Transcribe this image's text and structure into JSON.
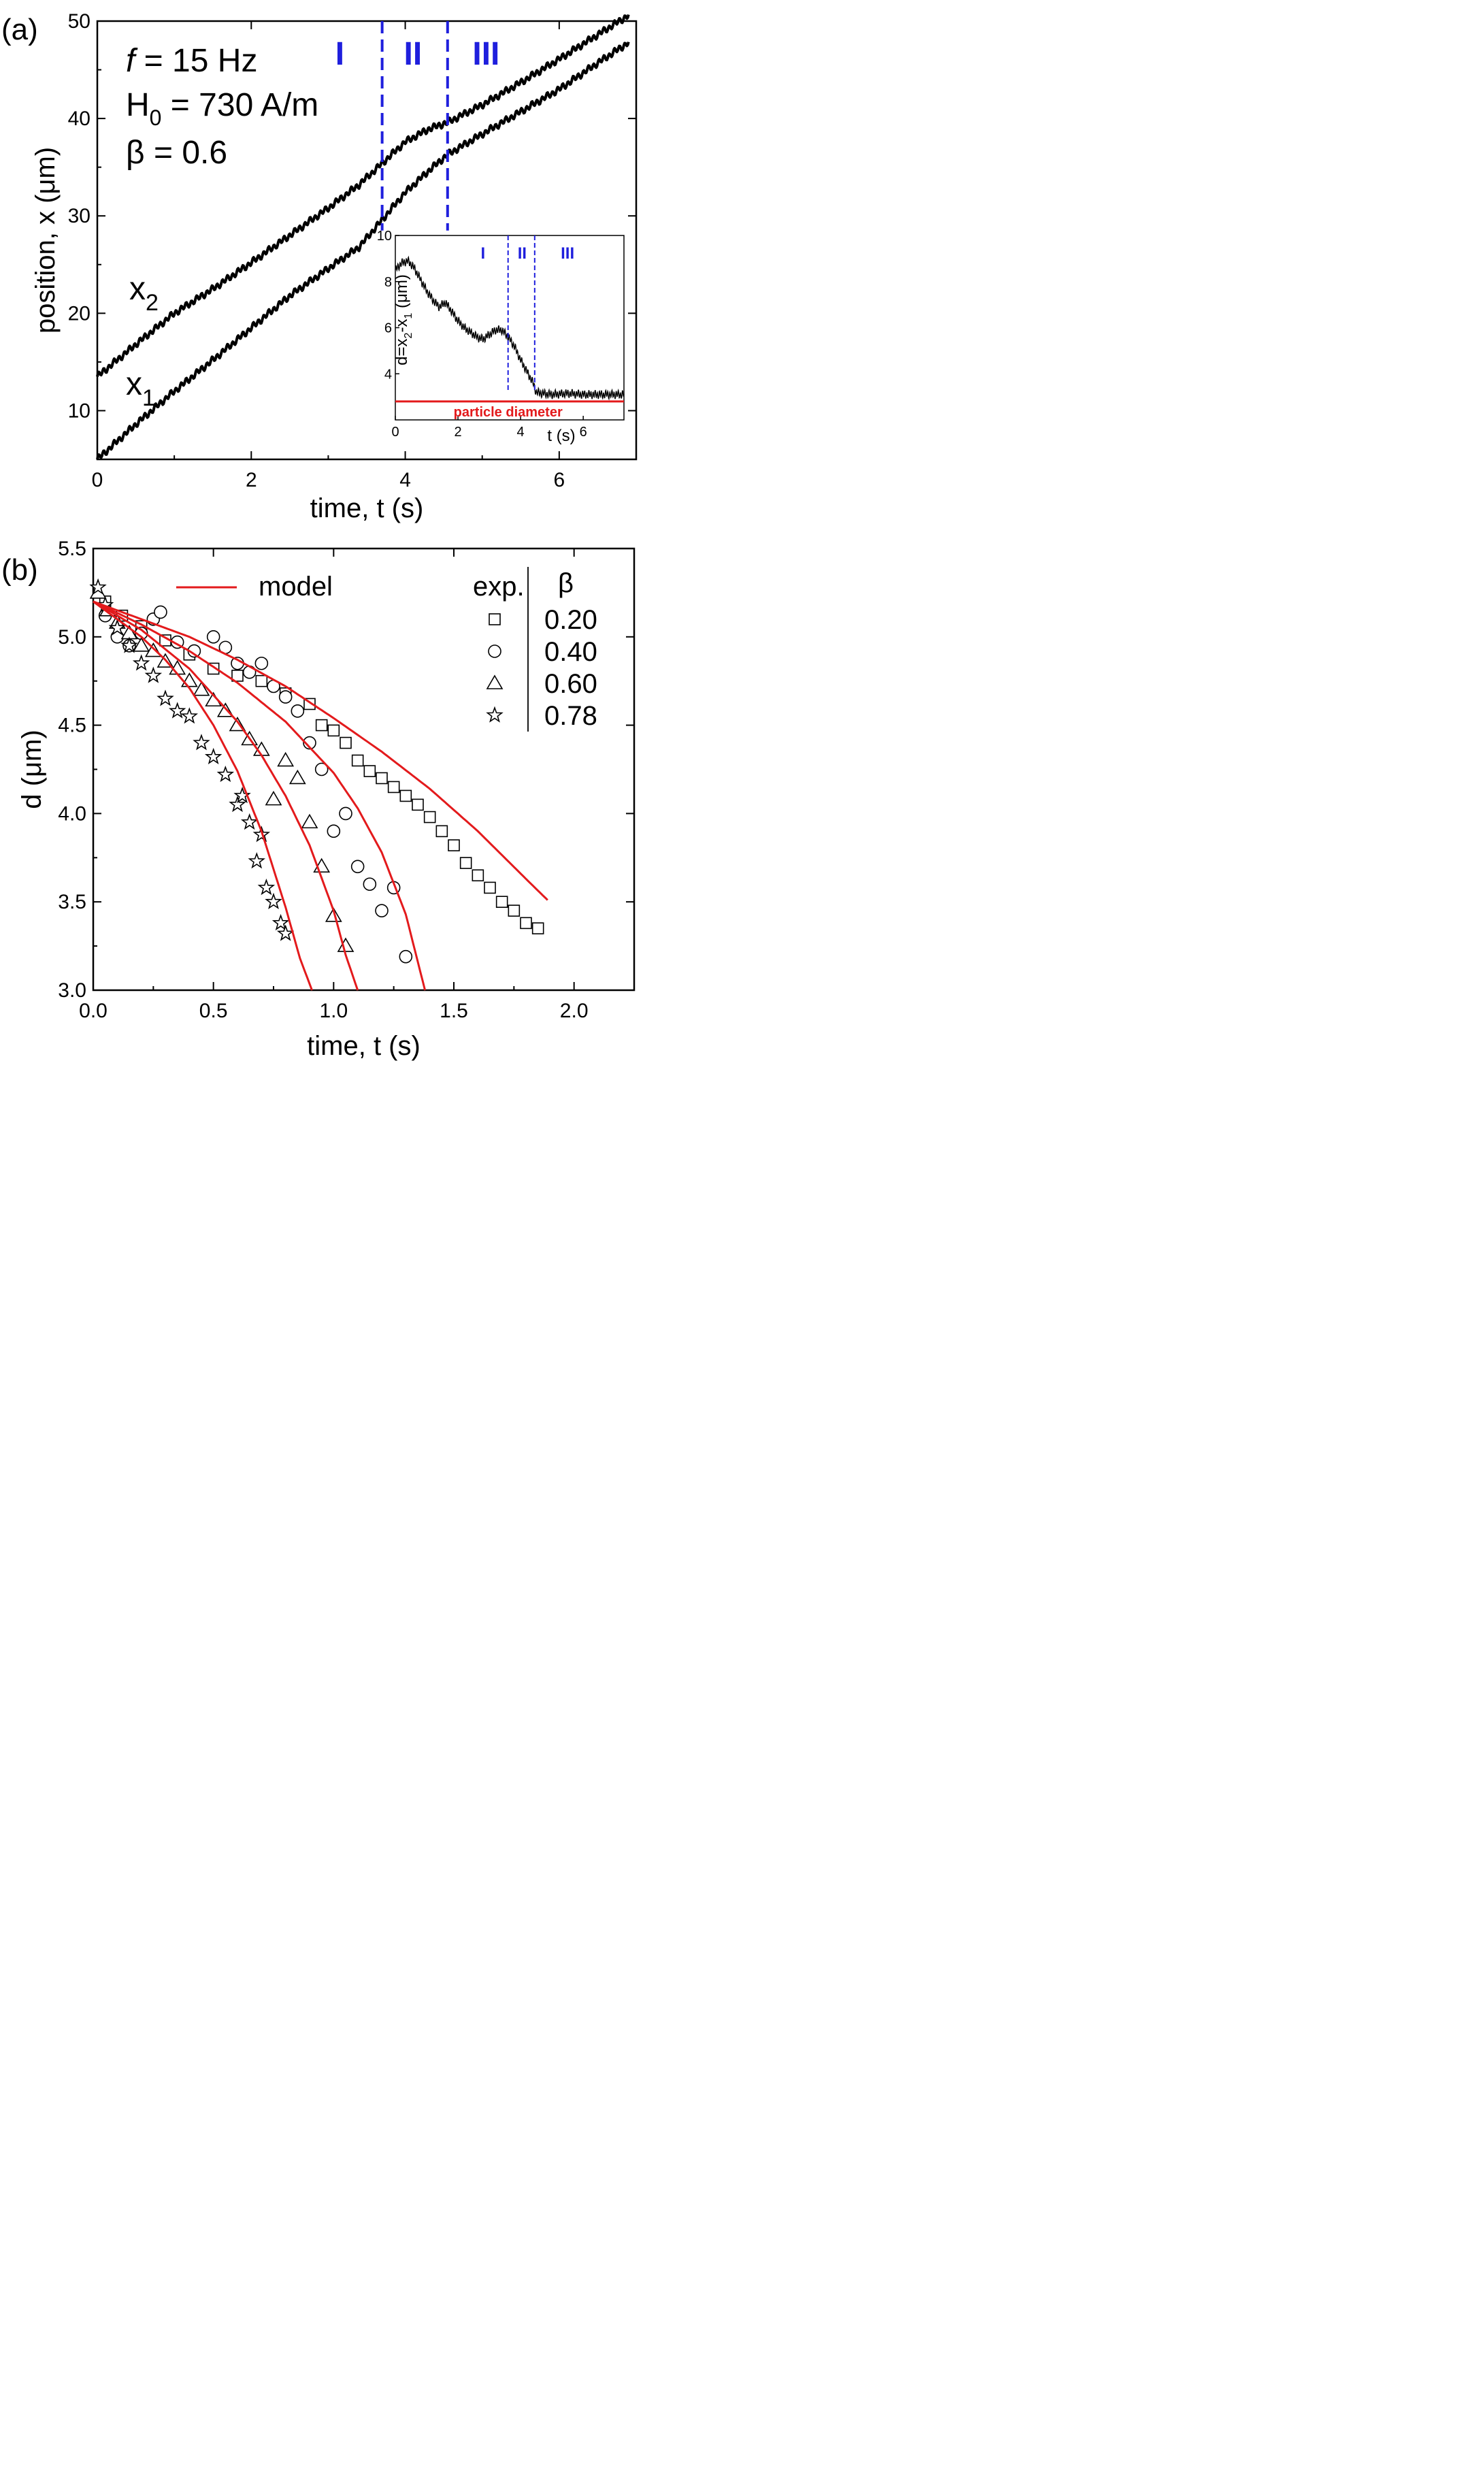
{
  "chart_data": [
    {
      "panel": "(a)",
      "type": "line",
      "xlabel": "time, t (s)",
      "ylabel": "position, x (μm)",
      "xlim": [
        0,
        7
      ],
      "ylim": [
        5,
        50
      ],
      "xticks": [
        0,
        2,
        4,
        6
      ],
      "yticks": [
        10,
        20,
        30,
        40,
        50
      ],
      "params": {
        "f_sym": "f",
        "f_rest": " = 15 Hz",
        "H_base": "H",
        "H_sub": "0",
        "H_rest": " = 730 A/m",
        "beta": "β = 0.6"
      },
      "regions": {
        "labels": [
          "I",
          "II",
          "III"
        ],
        "boundaries_t": [
          3.7,
          4.55
        ]
      },
      "curve_labels": {
        "x2_base": "x",
        "x2_sub": "2",
        "x1_base": "x",
        "x1_sub": "1"
      },
      "series": [
        {
          "name": "x2",
          "t": [
            0,
            0.5,
            1,
            1.5,
            2,
            2.5,
            3,
            3.4,
            3.7,
            4.0,
            4.3,
            4.55,
            5.0,
            5.5,
            6.0,
            6.5,
            6.9
          ],
          "x": [
            13.5,
            16.8,
            20.0,
            22.5,
            25.2,
            28.0,
            30.8,
            33.2,
            35.4,
            37.6,
            38.9,
            39.6,
            41.4,
            43.7,
            46.1,
            48.6,
            50.6
          ]
        },
        {
          "name": "x1",
          "t": [
            0,
            0.5,
            1,
            1.5,
            2,
            2.5,
            3,
            3.4,
            3.7,
            4.0,
            4.3,
            4.55,
            5.0,
            5.5,
            6.0,
            6.5,
            6.9
          ],
          "x": [
            5.0,
            8.6,
            12.0,
            15.2,
            18.5,
            21.8,
            24.6,
            26.8,
            29.6,
            32.4,
            34.6,
            36.3,
            38.4,
            40.7,
            43.0,
            45.7,
            47.8
          ]
        }
      ],
      "inset": {
        "type": "line",
        "xlabel": "t (s)",
        "ylabel_base": "d=x",
        "ylabel_sub2": "2",
        "ylabel_mid": "-x",
        "ylabel_sub1": "1",
        "ylabel_unit": " (μm)",
        "xlim": [
          0,
          7.3
        ],
        "ylim": [
          2,
          10
        ],
        "xticks": [
          0,
          2,
          4,
          6
        ],
        "yticks": [
          4,
          6,
          8,
          10
        ],
        "regions": {
          "labels": [
            "I",
            "II",
            "III"
          ],
          "boundaries_t": [
            3.6,
            4.45
          ]
        },
        "reference_line": {
          "y": 2.8,
          "label": "particle diameter"
        },
        "series": [
          {
            "name": "d",
            "t": [
              0,
              0.2,
              0.4,
              0.6,
              0.8,
              1.0,
              1.2,
              1.4,
              1.6,
              1.8,
              2.0,
              2.2,
              2.4,
              2.6,
              2.8,
              3.0,
              3.2,
              3.4,
              3.6,
              3.8,
              4.0,
              4.2,
              4.4,
              4.5,
              4.7,
              5.0,
              5.5,
              6.0,
              6.5,
              7.0,
              7.3
            ],
            "d": [
              8.5,
              8.8,
              8.9,
              8.6,
              8.1,
              7.6,
              7.2,
              6.9,
              7.1,
              6.7,
              6.3,
              6.0,
              5.8,
              5.6,
              5.5,
              5.7,
              5.9,
              5.9,
              5.6,
              5.2,
              4.6,
              4.1,
              3.6,
              3.2,
              3.15,
              3.1,
              3.15,
              3.1,
              3.1,
              3.1,
              3.1
            ]
          }
        ]
      }
    },
    {
      "panel": "(b)",
      "type": "scatter",
      "xlabel": "time, t (s)",
      "ylabel": "d (μm)",
      "xlim": [
        0,
        2.25
      ],
      "ylim": [
        3.0,
        5.5
      ],
      "xticks": [
        "0.0",
        "0.5",
        "1.0",
        "1.5",
        "2.0"
      ],
      "yticks": [
        "3.0",
        "3.5",
        "4.0",
        "4.5",
        "5.0",
        "5.5"
      ],
      "legend": {
        "model_label": "model",
        "exp_header": "exp.",
        "beta_header": "β",
        "entries": [
          {
            "marker": "square",
            "beta": "0.20"
          },
          {
            "marker": "circle",
            "beta": "0.40"
          },
          {
            "marker": "triangle",
            "beta": "0.60"
          },
          {
            "marker": "star",
            "beta": "0.78"
          }
        ]
      },
      "model_color": "#e31a1c",
      "model": [
        {
          "beta": 0.2,
          "t": [
            0,
            0.2,
            0.4,
            0.6,
            0.8,
            1.0,
            1.2,
            1.4,
            1.6,
            1.8,
            1.89
          ],
          "d": [
            5.2,
            5.1,
            5.0,
            4.87,
            4.72,
            4.54,
            4.35,
            4.14,
            3.9,
            3.63,
            3.51
          ]
        },
        {
          "beta": 0.4,
          "t": [
            0,
            0.2,
            0.4,
            0.6,
            0.8,
            1.0,
            1.1,
            1.2,
            1.3,
            1.38
          ],
          "d": [
            5.2,
            5.07,
            4.92,
            4.74,
            4.52,
            4.23,
            4.03,
            3.78,
            3.43,
            3.0
          ]
        },
        {
          "beta": 0.6,
          "t": [
            0,
            0.2,
            0.4,
            0.6,
            0.7,
            0.8,
            0.9,
            1.0,
            1.05,
            1.1
          ],
          "d": [
            5.2,
            5.04,
            4.82,
            4.52,
            4.33,
            4.1,
            3.82,
            3.45,
            3.2,
            3.0
          ]
        },
        {
          "beta": 0.78,
          "t": [
            0,
            0.2,
            0.3,
            0.4,
            0.5,
            0.6,
            0.7,
            0.8,
            0.86,
            0.91
          ],
          "d": [
            5.2,
            5.0,
            4.87,
            4.71,
            4.5,
            4.24,
            3.9,
            3.47,
            3.18,
            3.0
          ]
        }
      ],
      "experimental": [
        {
          "beta": 0.2,
          "marker": "square",
          "t": [
            0.05,
            0.12,
            0.2,
            0.3,
            0.4,
            0.5,
            0.6,
            0.7,
            0.8,
            0.9,
            0.95,
            1.0,
            1.05,
            1.1,
            1.15,
            1.2,
            1.25,
            1.3,
            1.35,
            1.4,
            1.45,
            1.5,
            1.55,
            1.6,
            1.65,
            1.7,
            1.75,
            1.8,
            1.85
          ],
          "d": [
            5.2,
            5.12,
            5.06,
            4.98,
            4.9,
            4.82,
            4.78,
            4.75,
            4.68,
            4.62,
            4.5,
            4.47,
            4.4,
            4.3,
            4.24,
            4.2,
            4.15,
            4.1,
            4.05,
            3.98,
            3.9,
            3.82,
            3.72,
            3.65,
            3.58,
            3.5,
            3.45,
            3.38,
            3.35
          ]
        },
        {
          "beta": 0.4,
          "marker": "circle",
          "t": [
            0.05,
            0.1,
            0.15,
            0.2,
            0.25,
            0.28,
            0.35,
            0.42,
            0.5,
            0.55,
            0.6,
            0.65,
            0.7,
            0.75,
            0.8,
            0.85,
            0.9,
            0.95,
            1.0,
            1.05,
            1.1,
            1.15,
            1.2,
            1.25,
            1.3
          ],
          "d": [
            5.12,
            5.0,
            4.95,
            5.02,
            5.1,
            5.14,
            4.97,
            4.92,
            5.0,
            4.94,
            4.85,
            4.8,
            4.85,
            4.72,
            4.66,
            4.58,
            4.4,
            4.25,
            3.9,
            4.0,
            3.7,
            3.6,
            3.45,
            3.58,
            3.19
          ]
        },
        {
          "beta": 0.6,
          "marker": "triangle",
          "t": [
            0.02,
            0.06,
            0.1,
            0.15,
            0.2,
            0.25,
            0.3,
            0.35,
            0.4,
            0.45,
            0.5,
            0.55,
            0.6,
            0.65,
            0.7,
            0.75,
            0.8,
            0.85,
            0.9,
            0.95,
            1.0,
            1.05
          ],
          "d": [
            5.25,
            5.15,
            5.08,
            5.02,
            4.95,
            4.92,
            4.86,
            4.82,
            4.75,
            4.7,
            4.64,
            4.58,
            4.5,
            4.42,
            4.36,
            4.08,
            4.3,
            4.2,
            3.95,
            3.7,
            3.42,
            3.25
          ]
        },
        {
          "beta": 0.78,
          "marker": "star",
          "t": [
            0.02,
            0.05,
            0.1,
            0.15,
            0.2,
            0.25,
            0.3,
            0.35,
            0.4,
            0.45,
            0.5,
            0.55,
            0.6,
            0.62,
            0.65,
            0.68,
            0.7,
            0.72,
            0.75,
            0.78,
            0.8
          ],
          "d": [
            5.28,
            5.18,
            5.05,
            4.95,
            4.85,
            4.78,
            4.65,
            4.58,
            4.55,
            4.4,
            4.32,
            4.22,
            4.05,
            4.1,
            3.95,
            3.73,
            3.88,
            3.58,
            3.5,
            3.38,
            3.32
          ]
        }
      ]
    }
  ]
}
